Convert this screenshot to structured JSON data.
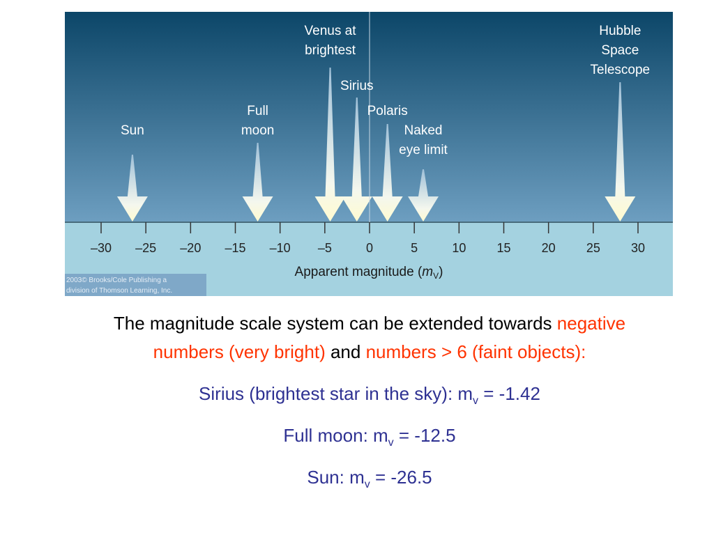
{
  "figure": {
    "axis": {
      "label_pre": "Apparent magnitude (",
      "label_var": "m",
      "label_sub": "V",
      "label_post": ")",
      "ticks": [
        {
          "value": -30,
          "label": "–30"
        },
        {
          "value": -25,
          "label": "–25"
        },
        {
          "value": -20,
          "label": "–20"
        },
        {
          "value": -15,
          "label": "–15"
        },
        {
          "value": -10,
          "label": "–10"
        },
        {
          "value": -5,
          "label": "–5"
        },
        0,
        5,
        10,
        15,
        20,
        25,
        30
      ]
    },
    "markers": [
      {
        "label": [
          "Sun"
        ],
        "value": -26.5
      },
      {
        "label": [
          "Full",
          "moon"
        ],
        "value": -12.5
      },
      {
        "label": [
          "Venus at",
          "brightest"
        ],
        "value": -4.4
      },
      {
        "label": [
          "Sirius"
        ],
        "value": -1.42
      },
      {
        "label": [
          "Polaris"
        ],
        "value": 2
      },
      {
        "label": [
          "Naked",
          "eye limit"
        ],
        "value": 6
      },
      {
        "label": [
          "Hubble",
          "Space",
          "Telescope"
        ],
        "value": 28
      }
    ],
    "credit": [
      "2003© Brooks/Cole Publishing a",
      "division of Thomson Learning, Inc."
    ]
  },
  "text": {
    "intro": [
      {
        "text": "The magnitude scale system can be extended towards ",
        "color": "#000000"
      },
      {
        "text": "negative numbers (very bright)",
        "color": "#ff3300"
      },
      {
        "text": " and ",
        "color": "#000000"
      },
      {
        "text": "numbers > 6 (faint objects):",
        "color": "#ff3300"
      }
    ],
    "facts": [
      {
        "pre": "Sirius (brightest star in the sky): m",
        "sub": "v",
        "post": " = -1.42"
      },
      {
        "pre": "Full moon: m",
        "sub": "v",
        "post": " = -12.5"
      },
      {
        "pre": "Sun: m",
        "sub": "v",
        "post": " = -26.5"
      }
    ]
  }
}
